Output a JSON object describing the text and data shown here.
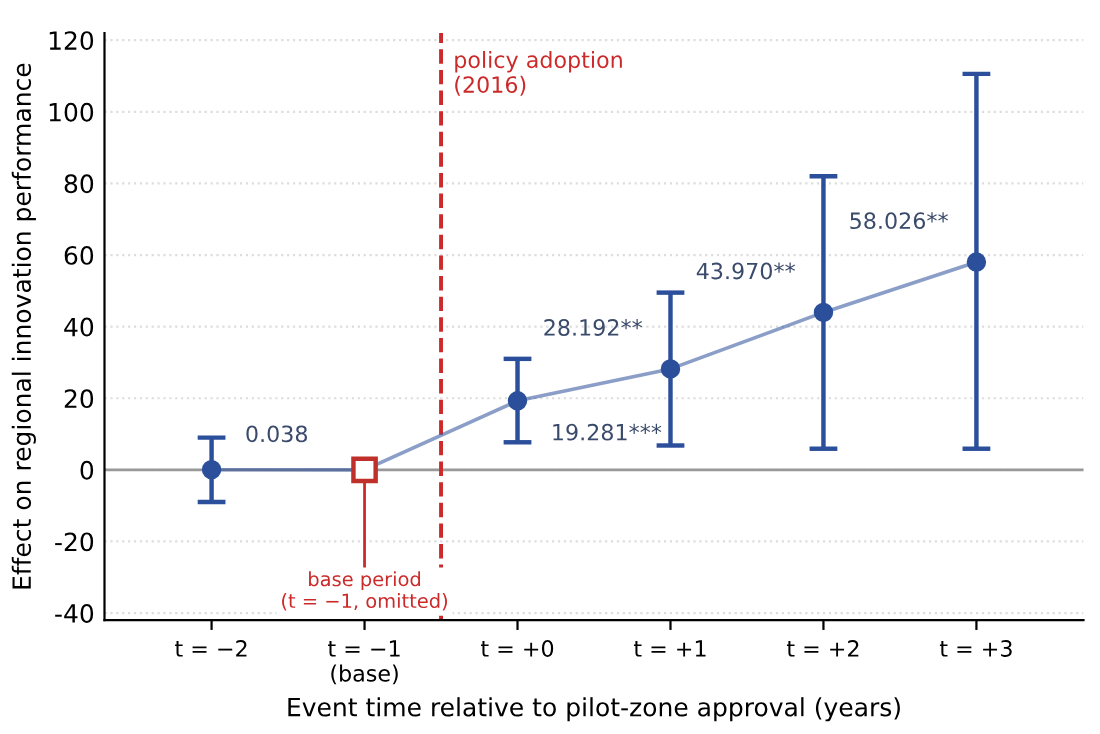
{
  "chart_data": {
    "type": "line",
    "xlabel": "Event time relative to pilot-zone approval (years)",
    "ylabel": "Effect on regional innovation performance",
    "x": [
      -2,
      -1,
      0,
      1,
      2,
      3
    ],
    "xlim": [
      -2.7,
      3.7
    ],
    "xticks": [
      {
        "value": -2,
        "label": "t = −2"
      },
      {
        "value": -1,
        "label": "t = −1\n(base)"
      },
      {
        "value": 0,
        "label": "t = +0"
      },
      {
        "value": 1,
        "label": "t = +1"
      },
      {
        "value": 2,
        "label": "t = +2"
      },
      {
        "value": 3,
        "label": "t = +3"
      }
    ],
    "ylim": [
      -42,
      122
    ],
    "yticks": [
      -40,
      -20,
      0,
      20,
      40,
      60,
      80,
      100,
      120
    ],
    "grid": "y",
    "marker": "circle",
    "series": [
      {
        "color": "#2b4f9b",
        "values": [
          0.038,
          0,
          19.281,
          28.192,
          43.97,
          58.026
        ],
        "errors": [
          [
            -9,
            9
          ],
          null,
          [
            7.7,
            31
          ],
          [
            6.8,
            49.5
          ],
          [
            5.9,
            82
          ],
          [
            5.9,
            110.6
          ]
        ],
        "value_labels": [
          "0.038",
          null,
          "19.281***",
          "28.192**",
          "43.970**",
          "58.026**"
        ]
      },
      {
        "type": "scatter",
        "color": "#c0302b",
        "marker": "square",
        "x": [
          -1
        ],
        "values": [
          0
        ]
      }
    ],
    "ref_lines": [
      {
        "axis": "y",
        "value": 0,
        "color": "#999999",
        "line_style": "solid"
      },
      {
        "axis": "x",
        "value": -0.5,
        "label": "policy adoption\n(2016)",
        "color": "#cc2a2a",
        "line_style": "dashed"
      }
    ],
    "annotations": [
      {
        "text": "base period\n(t = −1, omitted)",
        "x": -1,
        "y": 0
      }
    ]
  }
}
